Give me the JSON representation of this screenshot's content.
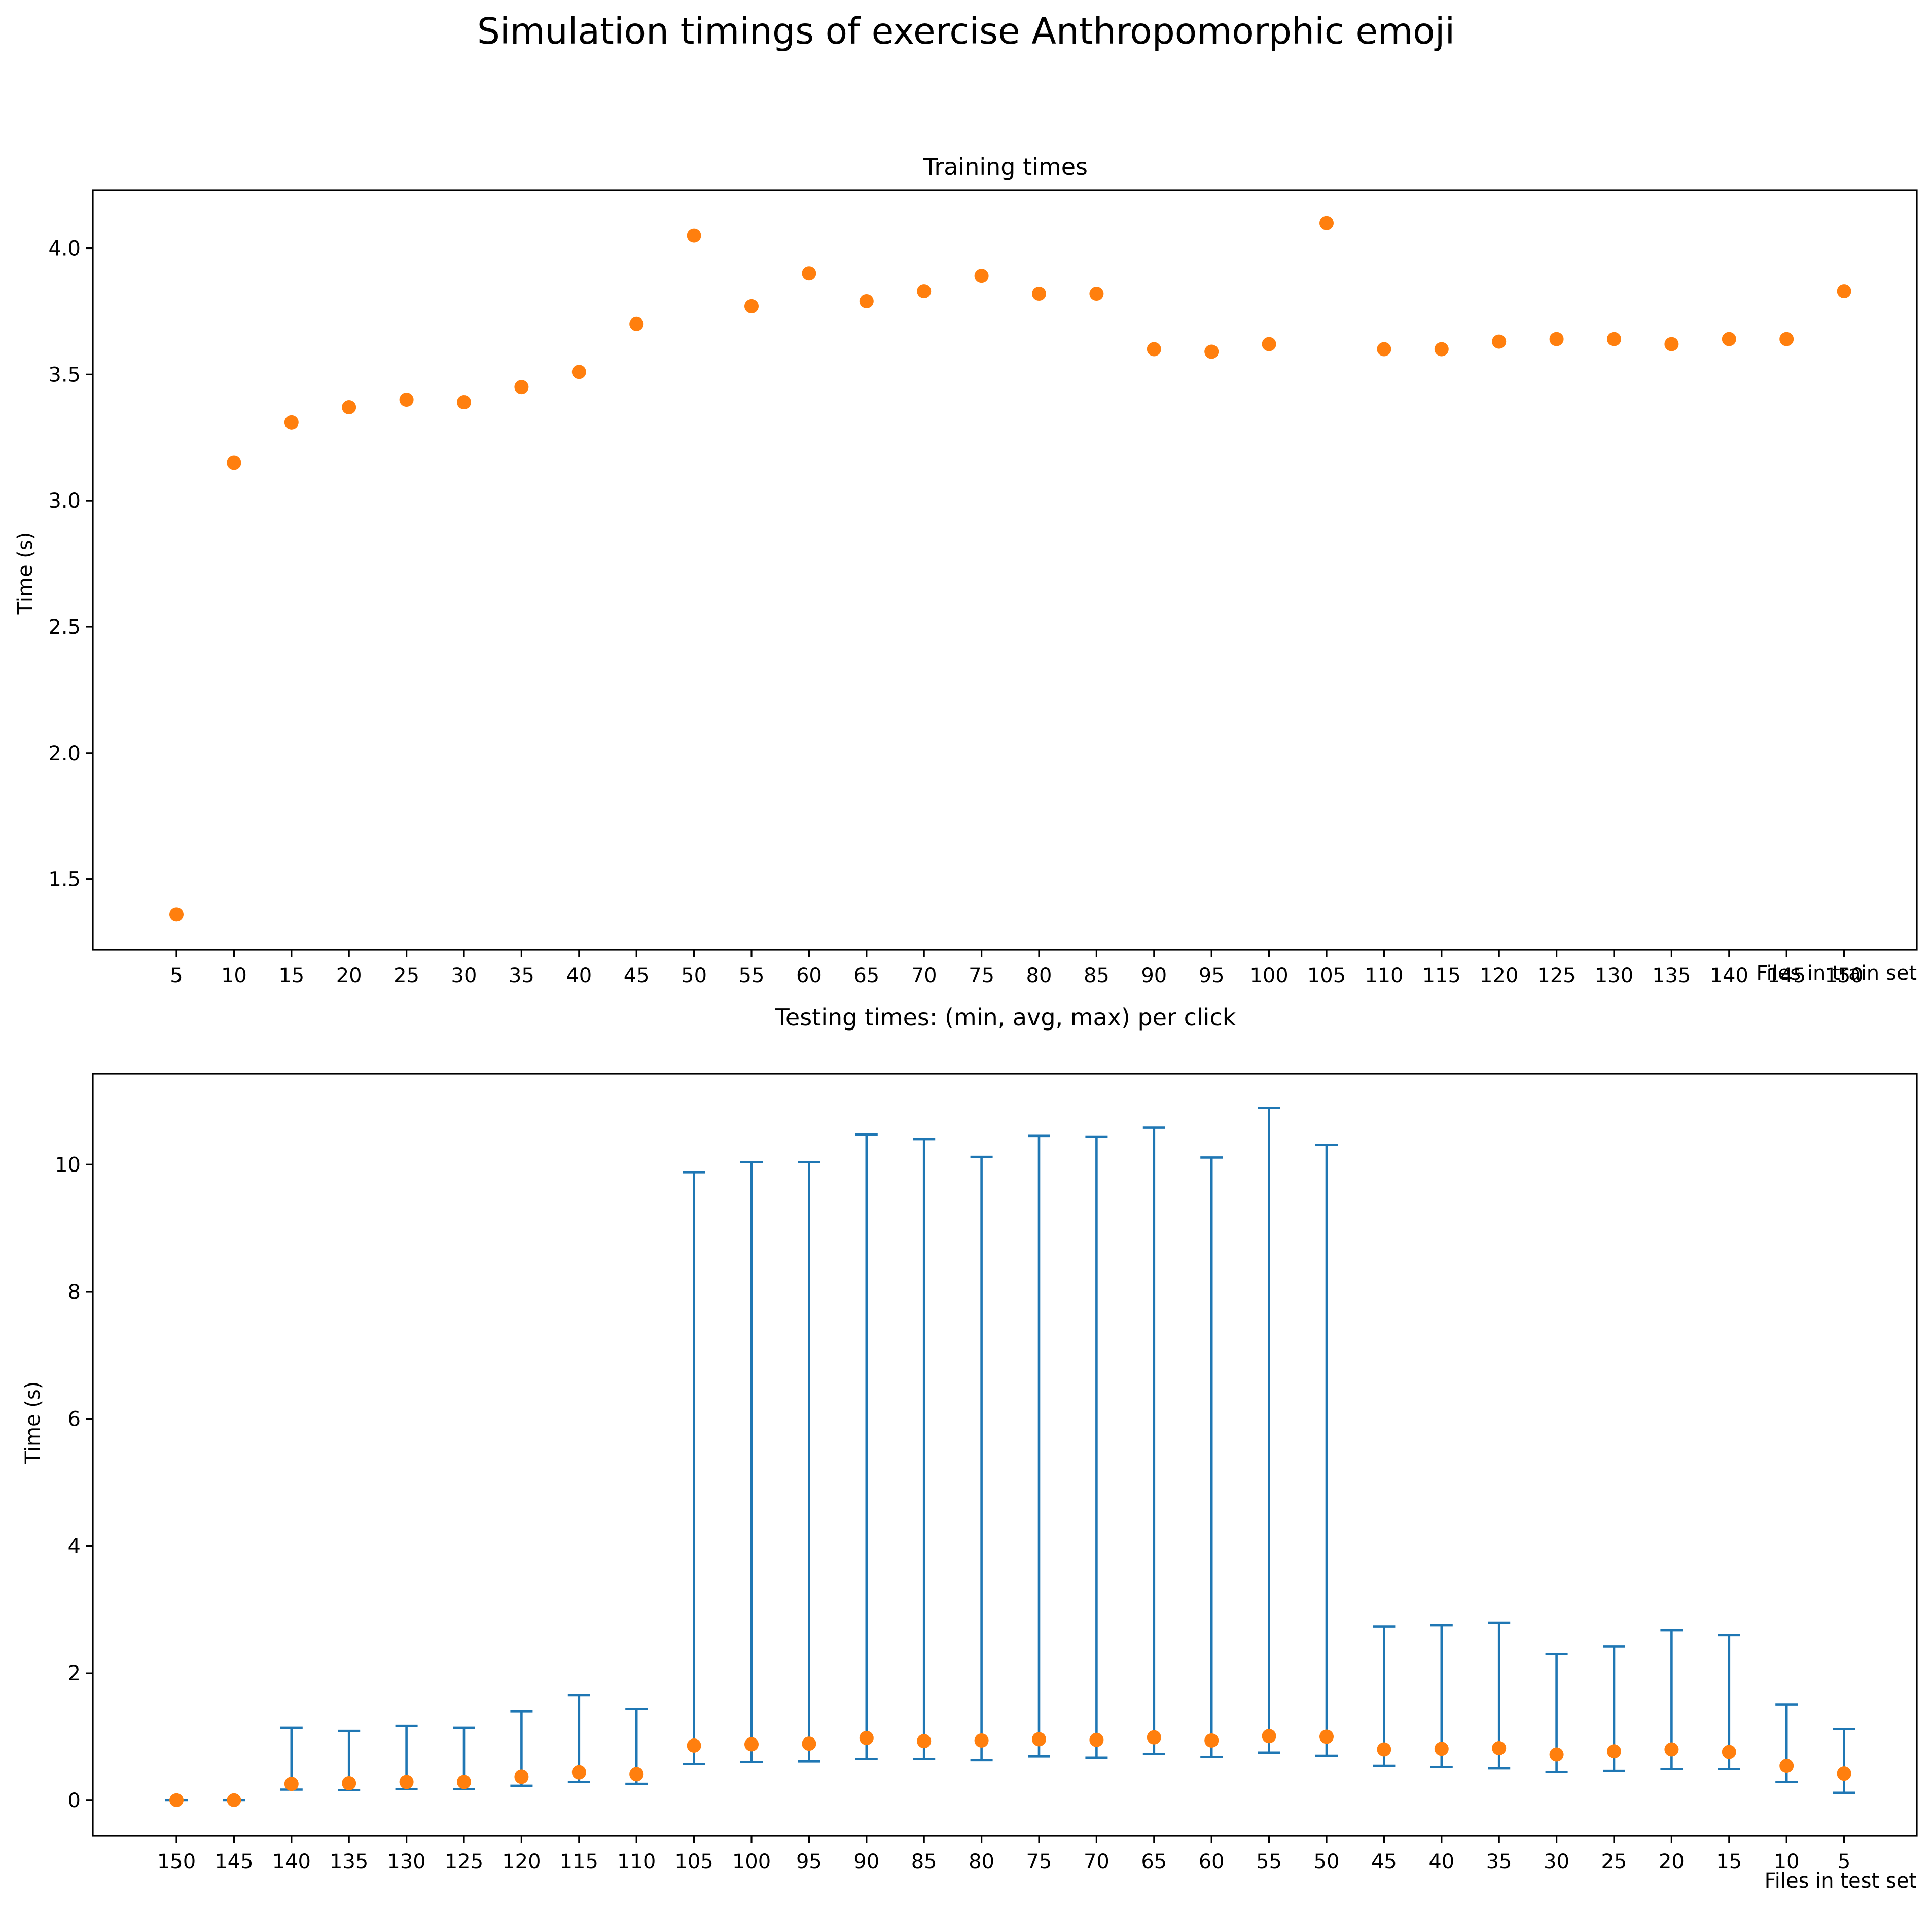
{
  "figure": {
    "suptitle": "Simulation timings of exercise Anthropomorphic emoji"
  },
  "chart_data": [
    {
      "type": "scatter",
      "title": "Training times",
      "xlabel": "Files in train set",
      "ylabel": "Time (s)",
      "categories": [
        "5",
        "10",
        "15",
        "20",
        "25",
        "30",
        "35",
        "40",
        "45",
        "50",
        "55",
        "60",
        "65",
        "70",
        "75",
        "80",
        "85",
        "90",
        "95",
        "100",
        "105",
        "110",
        "115",
        "120",
        "125",
        "130",
        "135",
        "140",
        "145",
        "150"
      ],
      "values": [
        1.36,
        3.15,
        3.31,
        3.37,
        3.4,
        3.39,
        3.45,
        3.51,
        3.7,
        4.05,
        3.77,
        3.9,
        3.79,
        3.83,
        3.89,
        3.82,
        3.82,
        3.6,
        3.59,
        3.62,
        4.1,
        3.6,
        3.6,
        3.63,
        3.64,
        3.64,
        3.62,
        3.64,
        3.64,
        3.83
      ],
      "ylim": [
        1.22,
        4.23
      ],
      "yticks": [
        "1.5",
        "2.0",
        "2.5",
        "3.0",
        "3.5",
        "4.0"
      ],
      "marker_color": "#ff7f0e"
    },
    {
      "type": "errorbar",
      "title": "Testing times: (min, avg, max) per click",
      "xlabel": "Files in test set",
      "ylabel": "Time (s)",
      "categories": [
        "150",
        "145",
        "140",
        "135",
        "130",
        "125",
        "120",
        "115",
        "110",
        "105",
        "100",
        "95",
        "90",
        "85",
        "80",
        "75",
        "70",
        "65",
        "60",
        "55",
        "50",
        "45",
        "40",
        "35",
        "30",
        "25",
        "20",
        "15",
        "10",
        "5"
      ],
      "min": [
        0.0,
        0.0,
        0.17,
        0.16,
        0.18,
        0.18,
        0.23,
        0.29,
        0.26,
        0.57,
        0.6,
        0.61,
        0.65,
        0.65,
        0.63,
        0.69,
        0.67,
        0.73,
        0.68,
        0.75,
        0.7,
        0.54,
        0.52,
        0.5,
        0.44,
        0.46,
        0.49,
        0.49,
        0.29,
        0.12
      ],
      "avg": [
        0.0,
        0.0,
        0.26,
        0.27,
        0.29,
        0.29,
        0.37,
        0.44,
        0.41,
        0.86,
        0.88,
        0.89,
        0.98,
        0.93,
        0.94,
        0.96,
        0.95,
        0.99,
        0.94,
        1.01,
        1.0,
        0.8,
        0.81,
        0.82,
        0.72,
        0.77,
        0.8,
        0.76,
        0.54,
        0.42
      ],
      "max": [
        0.0,
        0.0,
        1.14,
        1.09,
        1.17,
        1.14,
        1.4,
        1.65,
        1.44,
        9.88,
        10.04,
        10.04,
        10.47,
        10.4,
        10.12,
        10.45,
        10.44,
        10.58,
        10.11,
        10.89,
        10.31,
        2.73,
        2.75,
        2.79,
        2.3,
        2.42,
        2.67,
        2.6,
        1.51,
        1.12
      ],
      "ylim": [
        -0.56,
        11.43
      ],
      "yticks": [
        "0",
        "2",
        "4",
        "6",
        "8",
        "10"
      ],
      "errorbar_color": "#1f77b4",
      "marker_color": "#ff7f0e"
    }
  ]
}
